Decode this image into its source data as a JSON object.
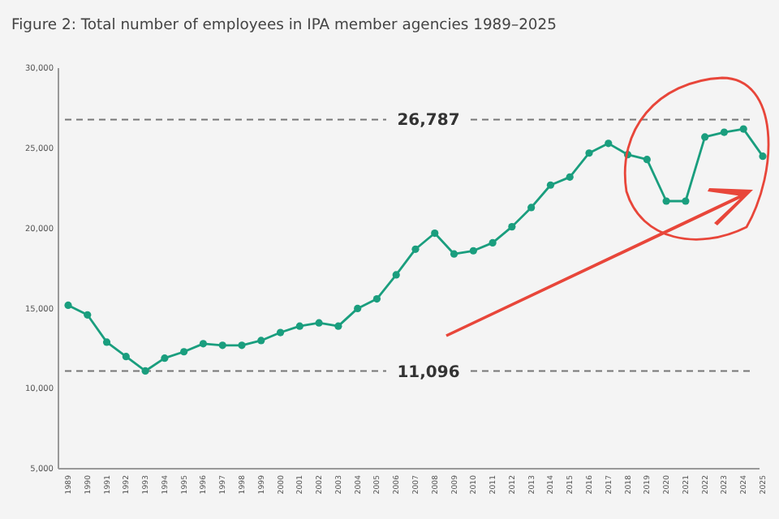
{
  "chart_data": {
    "type": "line",
    "title": "Figure 2: Total number of employees in IPA member agencies 1989–2025",
    "categories": [
      "1989",
      "1990",
      "1991",
      "1992",
      "1993",
      "1994",
      "1995",
      "1996",
      "1997",
      "1998",
      "1999",
      "2000",
      "2001",
      "2002",
      "2003",
      "2004",
      "2005",
      "2006",
      "2007",
      "2008",
      "2009",
      "2010",
      "2011",
      "2012",
      "2013",
      "2014",
      "2015",
      "2016",
      "2017",
      "2018",
      "2019",
      "2020",
      "2021",
      "2022",
      "2023",
      "2024",
      "2025"
    ],
    "series": [
      {
        "color": "#1a9e7e",
        "values": [
          15200,
          14600,
          12900,
          12000,
          11100,
          11900,
          12300,
          12800,
          12700,
          12700,
          13000,
          13500,
          13900,
          14100,
          13900,
          15000,
          15600,
          17100,
          18700,
          19700,
          18400,
          18600,
          19100,
          20100,
          21300,
          22700,
          23200,
          24700,
          25300,
          24600,
          24300,
          21700,
          21700,
          25700,
          26000,
          26200,
          24500
        ]
      }
    ],
    "ylim": [
      5000,
      30000
    ],
    "yticks": [
      {
        "value": 5000,
        "label": "5,000"
      },
      {
        "value": 10000,
        "label": "10,000"
      },
      {
        "value": 15000,
        "label": "15,000"
      },
      {
        "value": 20000,
        "label": "20,000"
      },
      {
        "value": 25000,
        "label": "25,000"
      },
      {
        "value": 30000,
        "label": "30,000"
      }
    ],
    "ref_lines": [
      {
        "axis": "y",
        "value": 26787,
        "label": "26,787",
        "color": "#777777",
        "line_style": "dashed"
      },
      {
        "axis": "y",
        "value": 11096,
        "label": "11,096",
        "color": "#777777",
        "line_style": "dashed"
      }
    ],
    "marker": "circle",
    "line_style": "solid",
    "grid": false
  }
}
